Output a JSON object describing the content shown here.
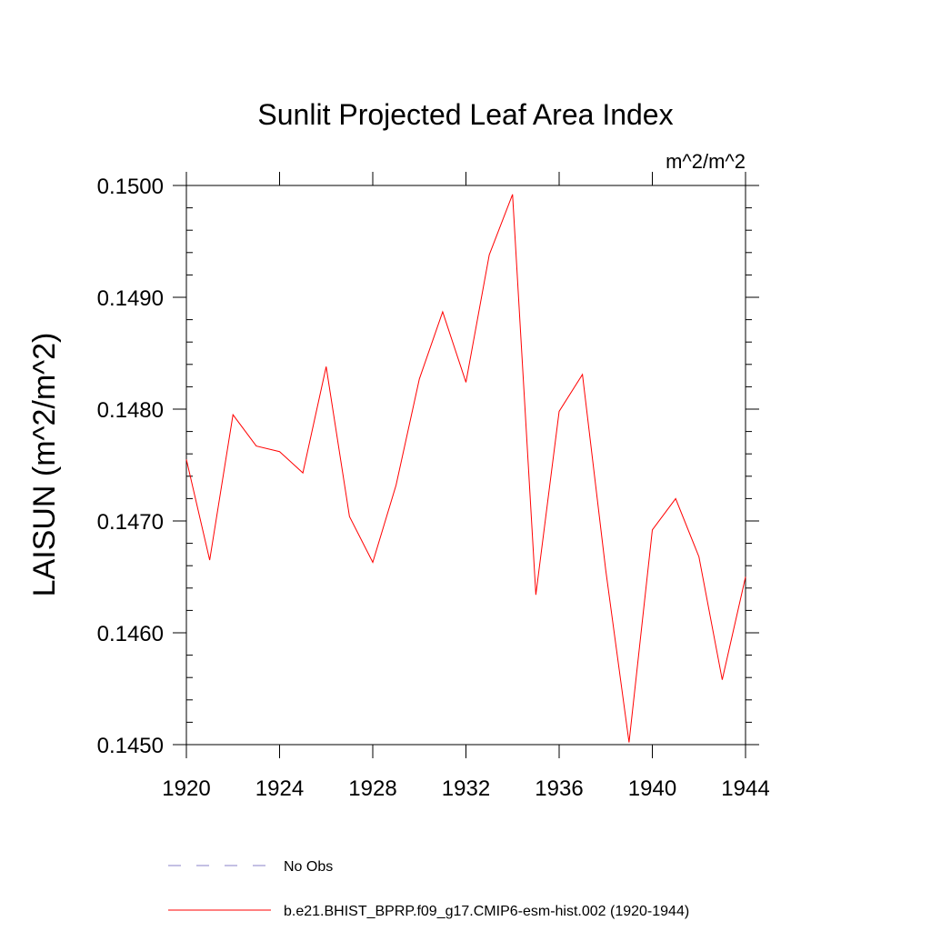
{
  "chart_data": {
    "type": "line",
    "title": "Sunlit Projected Leaf Area Index",
    "units": "m^2/m^2",
    "xlabel": "",
    "ylabel": "LAISUN  (m^2/m^2)",
    "xlim": [
      1920,
      1944
    ],
    "ylim": [
      0.145,
      0.15
    ],
    "x_ticks": [
      1920,
      1924,
      1928,
      1932,
      1936,
      1940,
      1944
    ],
    "x_tick_labels": [
      "1920",
      "1924",
      "1928",
      "1932",
      "1936",
      "1940",
      "1944"
    ],
    "y_ticks": [
      0.145,
      0.146,
      0.147,
      0.148,
      0.149,
      0.15
    ],
    "y_tick_labels": [
      "0.1450",
      "0.1460",
      "0.1470",
      "0.1480",
      "0.1490",
      "0.1500"
    ],
    "series": [
      {
        "name": "b.e21.BHIST_BPRP.f09_g17.CMIP6-esm-hist.002 (1920-1944)",
        "color": "#ff0000",
        "style": "solid",
        "x": [
          1920,
          1921,
          1922,
          1923,
          1924,
          1925,
          1926,
          1927,
          1928,
          1929,
          1930,
          1931,
          1932,
          1933,
          1934,
          1935,
          1936,
          1937,
          1938,
          1939,
          1940,
          1941,
          1942,
          1943,
          1944
        ],
        "y": [
          0.14755,
          0.14665,
          0.14795,
          0.14767,
          0.14762,
          0.14743,
          0.14838,
          0.14704,
          0.14663,
          0.14732,
          0.14827,
          0.14887,
          0.14824,
          0.14938,
          0.14992,
          0.14634,
          0.14798,
          0.14831,
          0.14656,
          0.14502,
          0.14692,
          0.1472,
          0.14668,
          0.14558,
          0.1465
        ]
      }
    ],
    "legend": [
      {
        "label": "No Obs",
        "color": "#8a80c8",
        "style": "dashed"
      },
      {
        "label": "b.e21.BHIST_BPRP.f09_g17.CMIP6-esm-hist.002 (1920-1944)",
        "color": "#ff0000",
        "style": "solid"
      }
    ],
    "legend_position": "bottom"
  }
}
